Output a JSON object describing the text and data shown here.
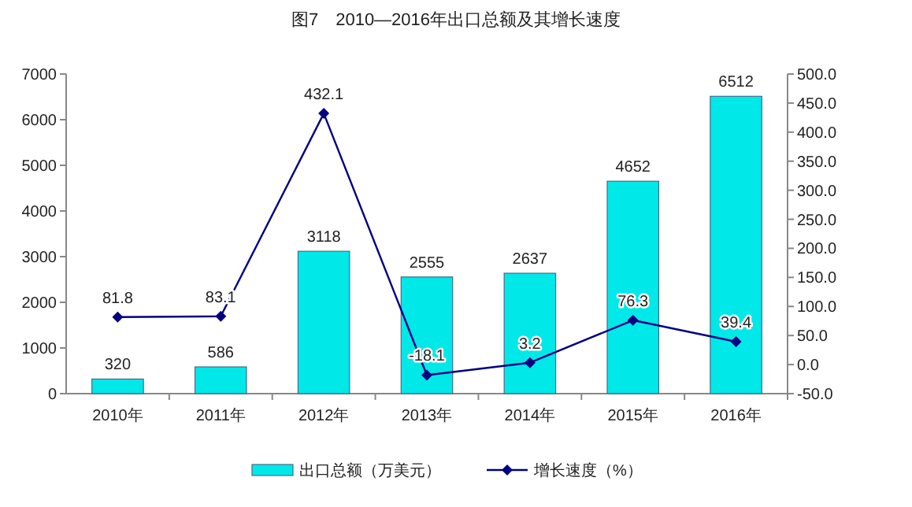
{
  "chart_data": {
    "type": "bar",
    "title": "图7　2010—2016年出口总额及其增长速度",
    "categories": [
      "2010年",
      "2011年",
      "2012年",
      "2013年",
      "2014年",
      "2015年",
      "2016年"
    ],
    "series": [
      {
        "name": "出口总额（万美元）",
        "color": "#00e8e8",
        "values": [
          320,
          586,
          3118,
          2555,
          2637,
          4652,
          6512
        ]
      },
      {
        "name": "增长速度（%）",
        "type": "line",
        "axis": "y2",
        "color": "#000080",
        "marker": "diamond",
        "values": [
          81.8,
          83.1,
          432.1,
          -18.1,
          3.2,
          76.3,
          39.4
        ]
      }
    ],
    "ylim": [
      0,
      7000
    ],
    "yticks": [
      0,
      1000,
      2000,
      3000,
      4000,
      5000,
      6000,
      7000
    ],
    "y2lim": [
      -50,
      500
    ],
    "y2ticks": [
      {
        "value": -50,
        "label": "-50.0"
      },
      {
        "value": 0,
        "label": "0.0"
      },
      {
        "value": 50,
        "label": "50.0"
      },
      {
        "value": 100,
        "label": "100.0"
      },
      {
        "value": 150,
        "label": "150.0"
      },
      {
        "value": 200,
        "label": "200.0"
      },
      {
        "value": 250,
        "label": "250.0"
      },
      {
        "value": 300,
        "label": "300.0"
      },
      {
        "value": 350,
        "label": "350.0"
      },
      {
        "value": 400,
        "label": "400.0"
      },
      {
        "value": 450,
        "label": "450.0"
      },
      {
        "value": 500,
        "label": "500.0"
      }
    ],
    "data_labels": true,
    "legend": "bottom",
    "grid": false
  }
}
